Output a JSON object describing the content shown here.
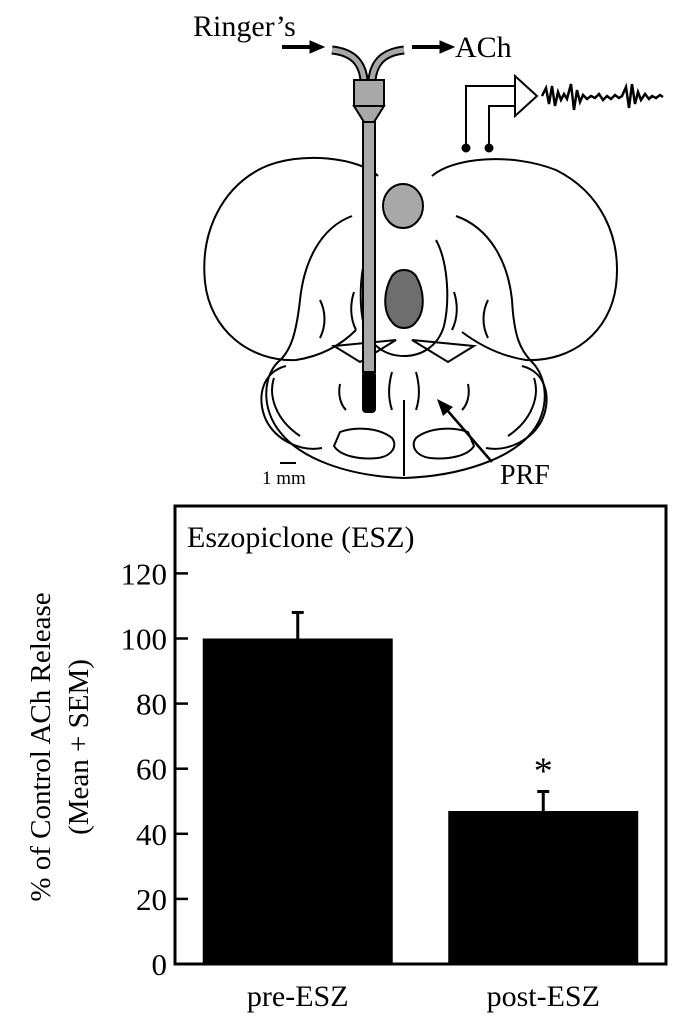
{
  "diagram": {
    "inlet_label": "Ringer’s",
    "outlet_label": "ACh",
    "region_label": "PRF",
    "scale_label": "1 mm"
  },
  "chart_data": {
    "type": "bar",
    "title": "Eszopiclone (ESZ)",
    "ylabel_line1": "% of Control ACh Release",
    "ylabel_line2": "(Mean + SEM)",
    "xlabel": "",
    "categories": [
      "pre-ESZ",
      "post-ESZ"
    ],
    "values": [
      100,
      47
    ],
    "errors": [
      8,
      6
    ],
    "significance": [
      "",
      "*"
    ],
    "ylim": [
      0,
      140
    ],
    "yticks": [
      0,
      20,
      40,
      60,
      80,
      100,
      120
    ],
    "bar_color": "#000000",
    "grid": false,
    "legend": "none"
  }
}
